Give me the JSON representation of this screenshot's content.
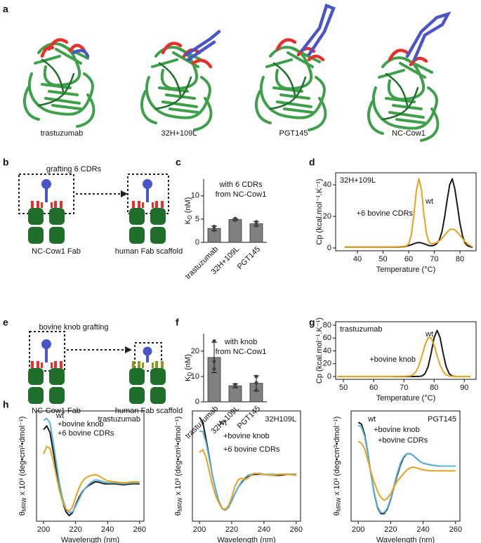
{
  "panels": [
    "a",
    "b",
    "c",
    "d",
    "e",
    "f",
    "g",
    "h"
  ],
  "structures": [
    "trastuzumab",
    "32H+109L",
    "PGT145",
    "NC-Cow1"
  ],
  "diagrams": [
    {
      "title": "grafting 6 CDRs",
      "source": "NC-Cow1 Fab",
      "target": "human Fab scaffold"
    },
    {
      "title": "bovine knob grafting",
      "source": "NC-Cow1 Fab",
      "target": "human Fab scaffold"
    }
  ],
  "chart_data": [
    {
      "type": "bar",
      "title": [
        "with 6 CDRs",
        "from NC-Cow1"
      ],
      "ylabel": {
        "text": "K",
        "sub": "D",
        "rest": "(nM)"
      },
      "categories": [
        "trastuzumab",
        "32H+109L",
        "PGT145"
      ],
      "values": [
        3.0,
        4.9,
        4.0
      ],
      "errors": [
        0.5,
        0.2,
        0.5
      ],
      "points": [
        [
          2.6,
          3.4
        ],
        [
          4.8,
          5.1
        ],
        [
          3.6,
          4.4
        ]
      ],
      "color": "#808080",
      "ylim": [
        0,
        13.6
      ],
      "yticks": [
        0,
        5,
        10
      ],
      "frame": false
    },
    {
      "type": "line",
      "annotation": "32H+109L",
      "xlabel": "Temperature (°C)",
      "ylabel": "Cp (kcal.mol⁻¹.K⁻¹)",
      "x": [
        35,
        40,
        45,
        50,
        55,
        58,
        59,
        60,
        61,
        62,
        63,
        64,
        65,
        66,
        67,
        68,
        69,
        70,
        71,
        72,
        73,
        74,
        75,
        76,
        77,
        78,
        79,
        80,
        81,
        82,
        83,
        85
      ],
      "series": [
        {
          "name": "wt",
          "color": "#1a1a1a",
          "values": [
            0.5,
            0.5,
            0.5,
            0.5,
            0.5,
            0.8,
            1,
            1.5,
            2,
            2.7,
            3.2,
            3.4,
            3.2,
            2.7,
            2,
            1.5,
            1.3,
            1.7,
            2.8,
            5.2,
            10.5,
            19.3,
            30.4,
            40,
            43.8,
            37.5,
            26.7,
            15.7,
            7.6,
            3.1,
            1.3,
            0.3
          ]
        },
        {
          "name": "+6 bovine CDRs",
          "color": "#e8a21c",
          "values": [
            0.5,
            0.5,
            0.5,
            0.5,
            0.7,
            1.0,
            1.2,
            2.5,
            8.1,
            20.5,
            36.4,
            44,
            36.4,
            20.5,
            8.5,
            3.5,
            2.5,
            2.8,
            3.5,
            4.5,
            6,
            8,
            10,
            11.5,
            12,
            11.5,
            10,
            8,
            6,
            4,
            2.5,
            0.5
          ]
        }
      ],
      "xlim": [
        31.5,
        86.3
      ],
      "xticks": [
        40,
        50,
        60,
        70,
        80
      ],
      "ylim": [
        -1.8,
        47.6
      ],
      "yticks": [
        0,
        20,
        40
      ],
      "frame": true
    },
    {
      "type": "bar",
      "title": [
        "with knob",
        "from NC-Cow1"
      ],
      "ylabel": {
        "text": "K",
        "sub": "D",
        "rest": "(nM)"
      },
      "categories": [
        "trastuzumab",
        "32H+109L",
        "PGT145"
      ],
      "values": [
        17.5,
        6.3,
        7.3
      ],
      "errors": [
        6,
        0.8,
        3
      ],
      "points": [
        [
          24,
          13,
          16
        ],
        [
          6,
          6.8,
          6.3
        ],
        [
          4.5,
          7.5,
          10
        ]
      ],
      "color": "#808080",
      "ylim": [
        0,
        26.9
      ],
      "yticks": [
        0,
        10,
        20
      ],
      "frame": false
    },
    {
      "type": "line",
      "annotation": "trastuzumab",
      "xlabel": "Temperature (°C)",
      "ylabel": "Cp (kcal.mol⁻¹.K⁻¹)",
      "x": [
        48,
        50,
        55,
        60,
        65,
        68,
        70,
        71,
        72,
        73,
        74,
        75,
        76,
        77,
        78,
        79,
        80,
        81,
        82,
        83,
        84,
        85,
        86,
        87,
        88,
        90,
        92
      ],
      "series": [
        {
          "name": "wt",
          "color": "#1a1a1a",
          "values": [
            0,
            0,
            0,
            0,
            0,
            0,
            0,
            0,
            0,
            0,
            0.1,
            0.1,
            0.9,
            4.5,
            15.2,
            36,
            60.5,
            72,
            60.5,
            36,
            15.2,
            4.5,
            0.9,
            0.1,
            0,
            0,
            0
          ]
        },
        {
          "name": "+bovine knob",
          "color": "#e8a21c",
          "values": [
            0,
            0,
            0,
            0,
            0,
            0.3,
            0.3,
            0.5,
            0.8,
            2.7,
            7.7,
            17.5,
            32.5,
            49.2,
            60.4,
            60.4,
            49.2,
            32.5,
            17.5,
            7.7,
            2.7,
            0.8,
            0.3,
            0,
            0,
            0,
            0
          ]
        }
      ],
      "xlim": [
        47.4,
        93.9
      ],
      "xticks": [
        50,
        60,
        70,
        80,
        90
      ],
      "ylim": [
        -4.4,
        85.5
      ],
      "yticks": [
        0,
        20,
        40,
        60,
        80
      ],
      "frame": true
    },
    {
      "type": "line",
      "annotation": "trastuzumab",
      "xlabel": "Wavelength (nm)",
      "ylabel": {
        "text": "θ",
        "sub": "MRW",
        "rest": "x 10³ (deg•cm²•dmol⁻¹)"
      },
      "x": [
        200,
        202,
        204,
        206,
        208,
        210,
        212,
        214,
        216,
        218,
        220,
        222,
        224,
        226,
        228,
        230,
        232,
        234,
        236,
        238,
        240,
        245,
        250,
        255,
        260
      ],
      "series": [
        {
          "name": "wt",
          "color": "#1a1a1a",
          "values": [
            5.8,
            6.2,
            5.5,
            3.5,
            1.5,
            -0.5,
            -2,
            -3,
            -3.4,
            -3.1,
            -2.3,
            -1.5,
            -0.9,
            -0.5,
            -0.2,
            0,
            0.2,
            0.2,
            0.1,
            0,
            0,
            0,
            -0.1,
            0,
            0
          ]
        },
        {
          "name": "+bovine knob",
          "color": "#5ab4dc",
          "values": [
            6.8,
            7,
            6.5,
            4.5,
            2.2,
            0,
            -1.6,
            -2.7,
            -3.1,
            -3,
            -2.4,
            -1.7,
            -1,
            -0.5,
            -0.1,
            0.2,
            0.4,
            0.4,
            0.3,
            0.2,
            0.1,
            0.1,
            0,
            0.1,
            0.1
          ]
        },
        {
          "name": "+6 bovine CDRs",
          "color": "#e8a21c",
          "values": [
            3.2,
            4,
            3.8,
            2.5,
            0.8,
            -0.8,
            -2,
            -2.7,
            -2.9,
            -2.5,
            -1.5,
            -0.5,
            0.2,
            0.6,
            0.8,
            0.9,
            1,
            0.9,
            0.7,
            0.5,
            0.3,
            0.2,
            0.1,
            0.2,
            0.2
          ]
        }
      ],
      "xlim": [
        195.6,
        262.7
      ],
      "xticks": [
        200,
        220,
        240,
        260
      ],
      "ylim": [
        -4,
        7.8
      ],
      "frame": true
    },
    {
      "type": "line",
      "annotation": "32H109L",
      "xlabel": "Wavelength (nm)",
      "ylabel": {
        "text": "θ",
        "sub": "MRW",
        "rest": "x 10³ (deg•cm²•dmol⁻¹)"
      },
      "x": [
        200,
        202,
        204,
        206,
        208,
        210,
        212,
        214,
        216,
        218,
        220,
        222,
        224,
        226,
        228,
        230,
        232,
        234,
        236,
        238,
        240,
        245,
        250,
        255,
        260
      ],
      "series": [
        {
          "name": "wt",
          "color": "#1a1a1a",
          "values": [
            6.3,
            5.8,
            4,
            2,
            0,
            -1.5,
            -2.8,
            -3.6,
            -3.8,
            -3.5,
            -2.8,
            -2,
            -1.3,
            -0.8,
            -0.4,
            -0.2,
            0,
            0.1,
            0.1,
            0.1,
            0.1,
            0,
            0,
            0.1,
            0.1
          ]
        },
        {
          "name": "+bovine knob",
          "color": "#5ab4dc",
          "values": [
            4.8,
            4.8,
            3.6,
            1.8,
            0,
            -1.5,
            -2.8,
            -3.6,
            -3.8,
            -3.5,
            -2.8,
            -2,
            -1.3,
            -0.7,
            -0.3,
            0,
            0.1,
            0.2,
            0.2,
            0.2,
            0.1,
            0.1,
            0.1,
            0.1,
            0.1
          ]
        },
        {
          "name": "+6 bovine CDRs",
          "color": "#e8a21c",
          "values": [
            2.5,
            2.8,
            2,
            0.5,
            -1,
            -2.2,
            -3,
            -3.6,
            -3.7,
            -3.3,
            -2.4,
            -1.2,
            -0.5,
            -0.3,
            -0.5,
            -0.3,
            0,
            0.2,
            0.2,
            0.1,
            0.1,
            0,
            0.1,
            0.1,
            0
          ]
        }
      ],
      "xlim": [
        195.6,
        262.7
      ],
      "xticks": [
        200,
        220,
        240,
        260
      ],
      "ylim": [
        -5,
        7
      ],
      "frame": true
    },
    {
      "type": "line",
      "annotation": "PGT145",
      "xlabel": "Wavelength (nm)",
      "ylabel": {
        "text": "θ",
        "sub": "MRW",
        "rest": "x 10³ (deg•cm²•dmol⁻¹)"
      },
      "x": [
        200,
        202,
        204,
        206,
        208,
        210,
        212,
        214,
        216,
        218,
        220,
        222,
        224,
        226,
        228,
        230,
        232,
        234,
        236,
        238,
        240,
        245,
        250,
        255,
        260
      ],
      "series": [
        {
          "name": "wt",
          "color": "#1a1a1a",
          "values": [
            4.8,
            4.6,
            3.5,
            1.5,
            -0.8,
            -2.8,
            -4.2,
            -4.8,
            -4.8,
            -4.3,
            -3.3,
            -2,
            -0.8,
            0.3,
            1.1,
            1.5,
            1.5,
            1.3,
            1,
            0.7,
            0.5,
            0.3,
            0.2,
            0.2,
            0.2
          ]
        },
        {
          "name": "+bovine knob",
          "color": "#5ab4dc",
          "values": [
            4.5,
            4.3,
            3.3,
            1.4,
            -0.8,
            -2.7,
            -4.1,
            -4.7,
            -4.7,
            -4.2,
            -3.2,
            -1.9,
            -0.6,
            0.5,
            1.2,
            1.5,
            1.5,
            1.3,
            1,
            0.7,
            0.5,
            0.3,
            0.2,
            0.2,
            0.2
          ]
        },
        {
          "name": "+bovine CDRs",
          "color": "#e8a21c",
          "values": [
            2.8,
            2.6,
            2,
            0.8,
            -0.5,
            -1.6,
            -2.5,
            -3.1,
            -3.4,
            -3.2,
            -2.7,
            -2,
            -1.4,
            -1,
            -0.6,
            -0.2,
            0,
            0.1,
            0,
            -0.1,
            -0.2,
            -0.3,
            -0.3,
            -0.3,
            -0.3
          ]
        }
      ],
      "xlim": [
        195.6,
        262.7
      ],
      "xticks": [
        200,
        220,
        240,
        260
      ],
      "ylim": [
        -5.6,
        6
      ],
      "frame": true
    }
  ]
}
